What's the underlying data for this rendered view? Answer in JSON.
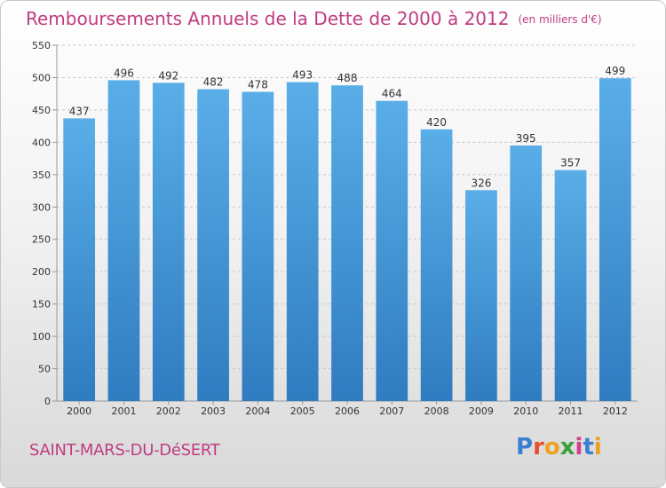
{
  "title": "Remboursements Annuels de la Dette de 2000 à 2012",
  "unit_label": "(en milliers d'€)",
  "city": "SAINT-MARS-DU-DéSERT",
  "logo": {
    "text": "Proxiti",
    "letter_colors": [
      "#3a7fd0",
      "#e8502c",
      "#f0a020",
      "#3aa03a",
      "#d43c8c",
      "#3a7fd0",
      "#f0a020"
    ]
  },
  "colors": {
    "bar_top": "#5aaee8",
    "bar_bottom": "#2f7cc0",
    "grid": "#c8c8c8",
    "axis": "#999999",
    "title": "#c03c82"
  },
  "chart_data": {
    "type": "bar",
    "categories": [
      "2000",
      "2001",
      "2002",
      "2003",
      "2004",
      "2005",
      "2006",
      "2007",
      "2008",
      "2009",
      "2010",
      "2011",
      "2012"
    ],
    "values": [
      437,
      496,
      492,
      482,
      478,
      493,
      488,
      464,
      420,
      326,
      395,
      357,
      499
    ],
    "ylim": [
      0,
      550
    ],
    "yticks": [
      0,
      50,
      100,
      150,
      200,
      250,
      300,
      350,
      400,
      450,
      500,
      550
    ],
    "grid": true,
    "data_labels": true
  }
}
